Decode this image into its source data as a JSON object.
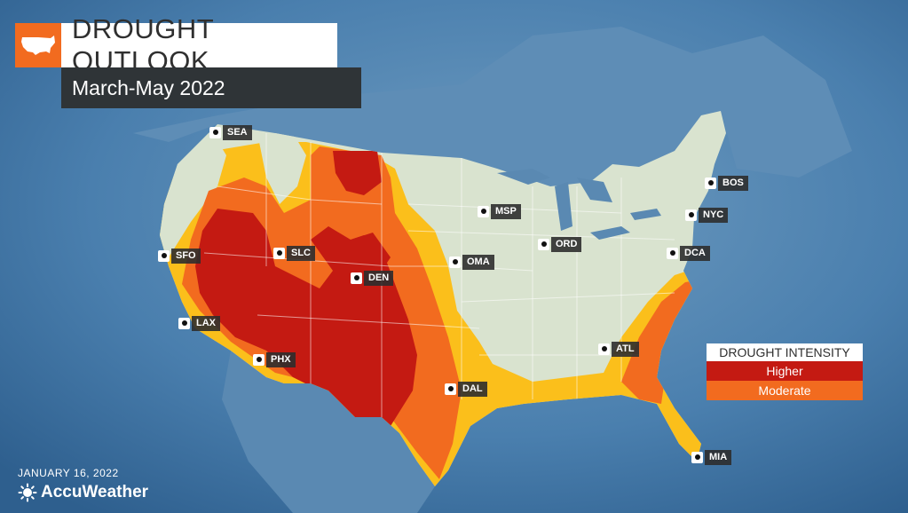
{
  "header": {
    "title": "DROUGHT OUTLOOK",
    "subtitle": "March-May 2022",
    "icon": "us-map-icon"
  },
  "cities": [
    {
      "key": "sea",
      "label": "SEA"
    },
    {
      "key": "sfo",
      "label": "SFO"
    },
    {
      "key": "lax",
      "label": "LAX"
    },
    {
      "key": "slc",
      "label": "SLC"
    },
    {
      "key": "den",
      "label": "DEN"
    },
    {
      "key": "phx",
      "label": "PHX"
    },
    {
      "key": "msp",
      "label": "MSP"
    },
    {
      "key": "oma",
      "label": "OMA"
    },
    {
      "key": "ord",
      "label": "ORD"
    },
    {
      "key": "dal",
      "label": "DAL"
    },
    {
      "key": "atl",
      "label": "ATL"
    },
    {
      "key": "bos",
      "label": "BOS"
    },
    {
      "key": "nyc",
      "label": "NYC"
    },
    {
      "key": "dca",
      "label": "DCA"
    },
    {
      "key": "mia",
      "label": "MIA"
    }
  ],
  "legend": {
    "title": "DROUGHT INTENSITY",
    "higher": "Higher",
    "moderate": "Moderate"
  },
  "colors": {
    "higher": "#c41a12",
    "moderate": "#f26b1f",
    "low": "#fbbf1b",
    "land": "#d9e3cf",
    "water": "#3f76a6"
  },
  "footer": {
    "date": "JANUARY 16, 2022",
    "brand": "AccuWeather",
    "brand_icon": "sun-icon"
  }
}
